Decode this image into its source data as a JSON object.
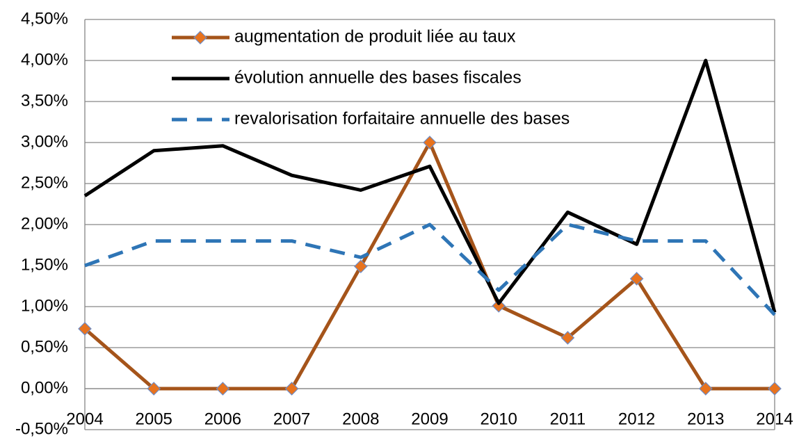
{
  "chart_data": {
    "type": "line",
    "categories": [
      "2004",
      "2005",
      "2006",
      "2007",
      "2008",
      "2009",
      "2010",
      "2011",
      "2012",
      "2013",
      "2014"
    ],
    "series": [
      {
        "name": "augmentation de produit liée au taux",
        "color": "#a5541a",
        "marker": "diamond",
        "marker_color": "#e8731e",
        "dashed": false,
        "values": [
          0.73,
          0,
          0,
          0,
          1.49,
          3.0,
          1.01,
          0.62,
          1.34,
          0,
          0
        ]
      },
      {
        "name": "évolution annuelle des bases fiscales",
        "color": "#000000",
        "marker": "none",
        "dashed": false,
        "values": [
          2.35,
          2.9,
          2.96,
          2.6,
          2.42,
          2.71,
          1.04,
          2.15,
          1.76,
          4.0,
          0.93
        ]
      },
      {
        "name": "revalorisation forfaitaire annuelle des bases",
        "color": "#2e75b6",
        "marker": "none",
        "dashed": true,
        "values": [
          1.5,
          1.8,
          1.8,
          1.8,
          1.6,
          2.0,
          1.2,
          2.0,
          1.8,
          1.8,
          0.9
        ]
      }
    ],
    "ylim": [
      -0.5,
      4.5
    ],
    "yticks": [
      {
        "value": -0.5,
        "label": "-0,50%"
      },
      {
        "value": 0,
        "label": "0,00%"
      },
      {
        "value": 0.5,
        "label": "0,50%"
      },
      {
        "value": 1,
        "label": "1,00%"
      },
      {
        "value": 1.5,
        "label": "1,50%"
      },
      {
        "value": 2,
        "label": "2,00%"
      },
      {
        "value": 2.5,
        "label": "2,50%"
      },
      {
        "value": 3,
        "label": "3,00%"
      },
      {
        "value": 3.5,
        "label": "3,50%"
      },
      {
        "value": 4,
        "label": "4,00%"
      },
      {
        "value": 4.5,
        "label": "4,50%"
      }
    ],
    "grid": true,
    "legend": "top"
  }
}
